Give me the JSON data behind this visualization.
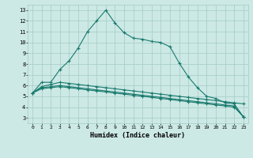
{
  "xlabel": "Humidex (Indice chaleur)",
  "bg_color": "#cce9e5",
  "grid_color": "#aacfcb",
  "line_color": "#1a7a6e",
  "xlim": [
    -0.5,
    23.5
  ],
  "ylim": [
    2.5,
    13.5
  ],
  "xticks": [
    0,
    1,
    2,
    3,
    4,
    5,
    6,
    7,
    8,
    9,
    10,
    11,
    12,
    13,
    14,
    15,
    16,
    17,
    18,
    19,
    20,
    21,
    22,
    23
  ],
  "yticks": [
    3,
    4,
    5,
    6,
    7,
    8,
    9,
    10,
    11,
    12,
    13
  ],
  "series": [
    {
      "x": [
        0,
        1,
        2,
        3,
        4,
        5,
        6,
        7,
        8,
        9,
        10,
        11,
        12,
        13,
        14,
        15,
        16,
        17,
        18,
        19,
        20,
        21,
        22,
        23
      ],
      "y": [
        5.3,
        6.3,
        6.3,
        7.5,
        8.3,
        9.5,
        11.0,
        12.0,
        13.0,
        11.8,
        10.9,
        10.4,
        10.3,
        10.1,
        10.0,
        9.6,
        8.1,
        6.8,
        5.8,
        5.0,
        4.8,
        4.4,
        4.3,
        3.1
      ]
    },
    {
      "x": [
        0,
        1,
        2,
        3,
        4,
        5,
        6,
        7,
        8,
        9,
        10,
        11,
        12,
        13,
        14,
        15,
        16,
        17,
        18,
        19,
        20,
        21,
        22,
        23
      ],
      "y": [
        5.3,
        5.9,
        6.1,
        6.3,
        6.2,
        6.1,
        6.0,
        5.9,
        5.8,
        5.7,
        5.6,
        5.5,
        5.4,
        5.3,
        5.2,
        5.1,
        5.0,
        4.9,
        4.8,
        4.7,
        4.6,
        4.5,
        4.4,
        4.3
      ]
    },
    {
      "x": [
        0,
        1,
        2,
        3,
        4,
        5,
        6,
        7,
        8,
        9,
        10,
        11,
        12,
        13,
        14,
        15,
        16,
        17,
        18,
        19,
        20,
        21,
        22,
        23
      ],
      "y": [
        5.3,
        5.8,
        5.9,
        6.0,
        5.9,
        5.8,
        5.7,
        5.6,
        5.5,
        5.4,
        5.3,
        5.2,
        5.1,
        5.0,
        4.9,
        4.8,
        4.7,
        4.6,
        4.5,
        4.4,
        4.3,
        4.2,
        4.1,
        3.1
      ]
    },
    {
      "x": [
        0,
        1,
        2,
        3,
        4,
        5,
        6,
        7,
        8,
        9,
        10,
        11,
        12,
        13,
        14,
        15,
        16,
        17,
        18,
        19,
        20,
        21,
        22,
        23
      ],
      "y": [
        5.3,
        5.7,
        5.8,
        5.9,
        5.8,
        5.7,
        5.6,
        5.5,
        5.4,
        5.3,
        5.2,
        5.1,
        5.0,
        4.9,
        4.8,
        4.7,
        4.6,
        4.5,
        4.4,
        4.3,
        4.2,
        4.1,
        4.0,
        3.1
      ]
    }
  ]
}
